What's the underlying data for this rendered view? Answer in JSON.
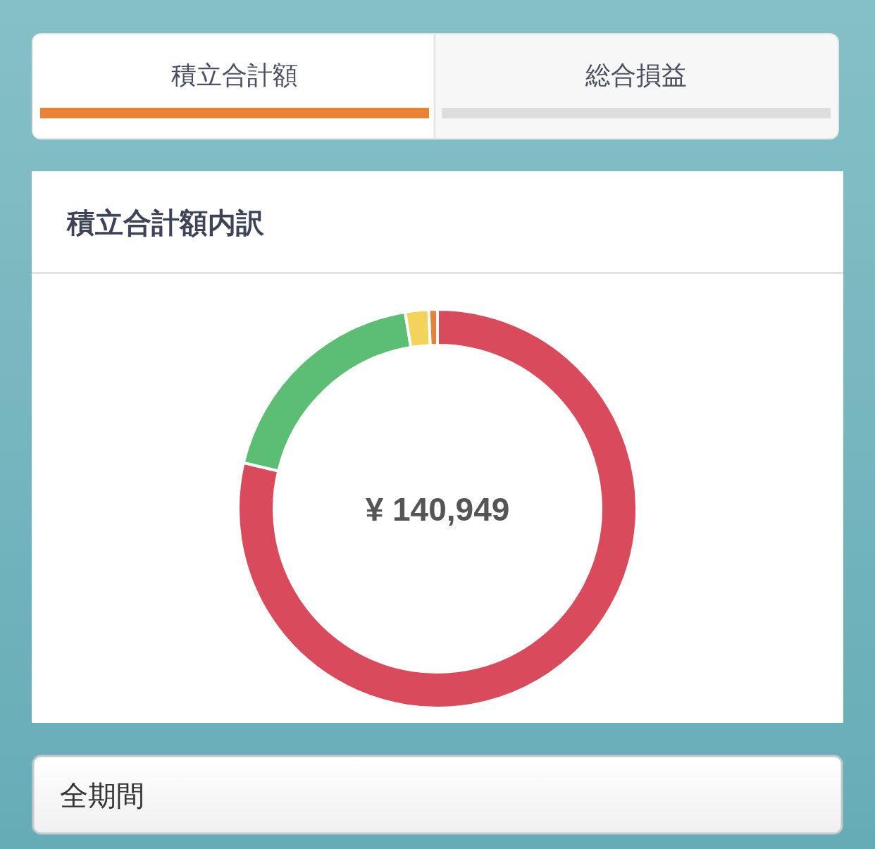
{
  "chart_data": {
    "type": "donut",
    "title": "積立合計額内訳",
    "categories": [
      null,
      null,
      null,
      null
    ],
    "values": [
      78.7,
      18.7,
      1.9,
      0.7
    ],
    "colors": [
      "#d94a5c",
      "#5bbe74",
      "#f4d35a",
      "#e58139"
    ],
    "annotations": [
      "積立合計額",
      "総合損益",
      "¥ 140,949",
      "全期間"
    ]
  }
}
